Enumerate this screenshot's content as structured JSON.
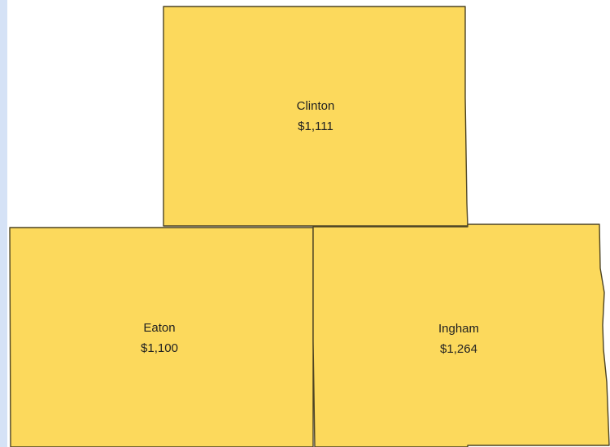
{
  "regions": [
    {
      "name": "Clinton",
      "label": "$1,111"
    },
    {
      "name": "Eaton",
      "label": "$1,100"
    },
    {
      "name": "Ingham",
      "label": "$1,264"
    }
  ]
}
